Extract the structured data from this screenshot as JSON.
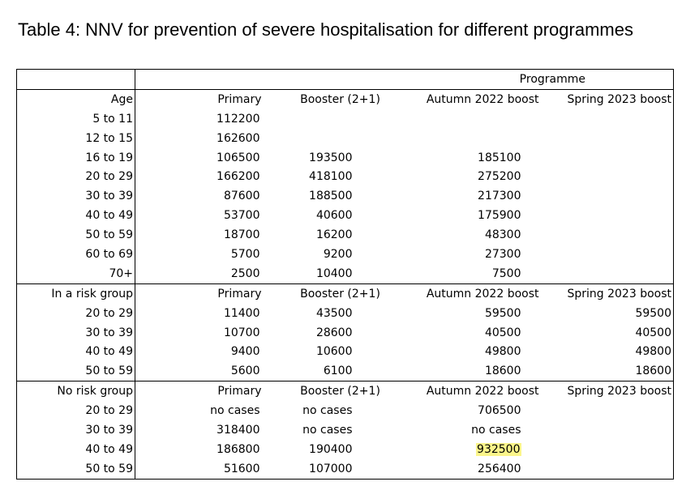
{
  "caption": "Table 4: NNV for prevention of severe hospitalisation for different programmes",
  "programme_header": "Programme",
  "sections": [
    {
      "header": [
        "Age",
        "Primary",
        "Booster (2+1)",
        "Autumn 2022 boost",
        "Spring 2023 boost"
      ],
      "rows": [
        [
          "5 to 11",
          "112200",
          "",
          "",
          ""
        ],
        [
          "12 to 15",
          "162600",
          "",
          "",
          ""
        ],
        [
          "16 to 19",
          "106500",
          "193500",
          "185100",
          ""
        ],
        [
          "20 to 29",
          "166200",
          "418100",
          "275200",
          ""
        ],
        [
          "30 to 39",
          "87600",
          "188500",
          "217300",
          ""
        ],
        [
          "40 to 49",
          "53700",
          "40600",
          "175900",
          ""
        ],
        [
          "50 to 59",
          "18700",
          "16200",
          "48300",
          ""
        ],
        [
          "60 to 69",
          "5700",
          "9200",
          "27300",
          ""
        ],
        [
          "70+",
          "2500",
          "10400",
          "7500",
          ""
        ]
      ]
    },
    {
      "header": [
        "In a risk group",
        "Primary",
        "Booster (2+1)",
        "Autumn 2022 boost",
        "Spring 2023 boost"
      ],
      "rows": [
        [
          "20 to 29",
          "11400",
          "43500",
          "59500",
          "59500"
        ],
        [
          "30 to 39",
          "10700",
          "28600",
          "40500",
          "40500"
        ],
        [
          "40 to 49",
          "9400",
          "10600",
          "49800",
          "49800"
        ],
        [
          "50 to 59",
          "5600",
          "6100",
          "18600",
          "18600"
        ]
      ]
    },
    {
      "header": [
        "No risk group",
        "Primary",
        "Booster (2+1)",
        "Autumn 2022 boost",
        "Spring 2023 boost"
      ],
      "rows": [
        [
          "20 to 29",
          "no cases",
          "no cases",
          "706500",
          ""
        ],
        [
          "30 to 39",
          "318400",
          "no cases",
          "no cases",
          ""
        ],
        [
          "40 to 49",
          "186800",
          "190400",
          "932500",
          ""
        ],
        [
          "50 to 59",
          "51600",
          "107000",
          "256400",
          ""
        ]
      ]
    }
  ],
  "highlight": {
    "section": 2,
    "row": 2,
    "col": 3,
    "color": "#fbf58a"
  }
}
